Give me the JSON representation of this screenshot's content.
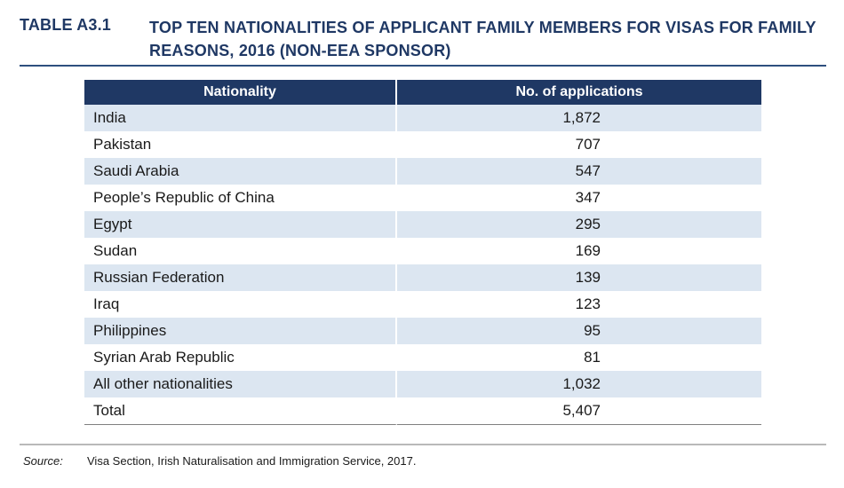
{
  "title": {
    "label": "TABLE A3.1",
    "text": "TOP TEN NATIONALITIES OF APPLICANT FAMILY MEMBERS FOR VISAS FOR FAMILY REASONS, 2016 (NON-EEA SPONSOR)"
  },
  "table": {
    "headers": [
      "Nationality",
      "No. of applications"
    ],
    "rows": [
      {
        "nationality": "India",
        "applications": "1,872"
      },
      {
        "nationality": "Pakistan",
        "applications": "707"
      },
      {
        "nationality": "Saudi Arabia",
        "applications": "547"
      },
      {
        "nationality": "People’s Republic of China",
        "applications": "347"
      },
      {
        "nationality": "Egypt",
        "applications": "295"
      },
      {
        "nationality": "Sudan",
        "applications": "169"
      },
      {
        "nationality": "Russian Federation",
        "applications": "139"
      },
      {
        "nationality": "Iraq",
        "applications": "123"
      },
      {
        "nationality": "Philippines",
        "applications": "95"
      },
      {
        "nationality": "Syrian Arab Republic",
        "applications": "81"
      },
      {
        "nationality": "All other nationalities",
        "applications": "1,032"
      },
      {
        "nationality": "Total",
        "applications": "5,407"
      }
    ]
  },
  "source": {
    "label": "Source:",
    "text": "Visa Section, Irish Naturalisation and Immigration Service, 2017."
  },
  "colors": {
    "header_bg": "#1f3864",
    "row_shade": "#dce6f1",
    "title_text": "#1f3864"
  }
}
